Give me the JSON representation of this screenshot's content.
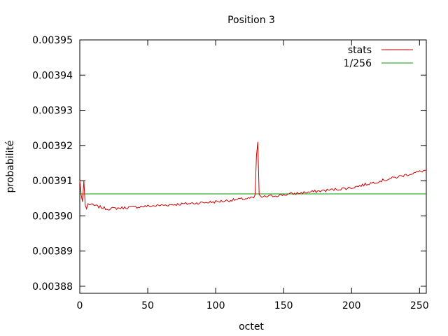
{
  "chart_data": {
    "type": "line",
    "title": "Position 3",
    "xlabel": "octet",
    "ylabel": "probabilité",
    "xlim": [
      0,
      255
    ],
    "ylim": [
      0.003878,
      0.00395
    ],
    "xticks": [
      0,
      50,
      100,
      150,
      200,
      250
    ],
    "xtick_labels": [
      "0",
      "50",
      "100",
      "150",
      "200",
      "250"
    ],
    "yticks": [
      0.00388,
      0.00389,
      0.0039,
      0.00391,
      0.00392,
      0.00393,
      0.00394,
      0.00395
    ],
    "ytick_labels": [
      "0.00388",
      "0.00389",
      "0.00390",
      "0.00391",
      "0.00392",
      "0.00393",
      "0.00394",
      "0.00395"
    ],
    "grid": false,
    "legend_position": "top-right",
    "series": [
      {
        "name": "stats",
        "color": "#cc0000",
        "trend_points": [
          [
            0,
            0.003904
          ],
          [
            20,
            0.003902
          ],
          [
            60,
            0.003903
          ],
          [
            100,
            0.003904
          ],
          [
            125,
            0.003905
          ],
          [
            150,
            0.003906
          ],
          [
            200,
            0.003908
          ],
          [
            255,
            0.003913
          ]
        ],
        "spikes": [
          [
            0,
            0.00391
          ],
          [
            1,
            0.003906
          ],
          [
            2,
            0.003904
          ],
          [
            3,
            0.00391
          ],
          [
            4,
            0.003903
          ],
          [
            5,
            0.003902
          ],
          [
            129,
            0.003906
          ],
          [
            130,
            0.003917
          ],
          [
            131,
            0.003921
          ],
          [
            132,
            0.003906
          ]
        ]
      },
      {
        "name": "1/256",
        "color": "#00a000",
        "constant": 0.00390625
      }
    ]
  }
}
